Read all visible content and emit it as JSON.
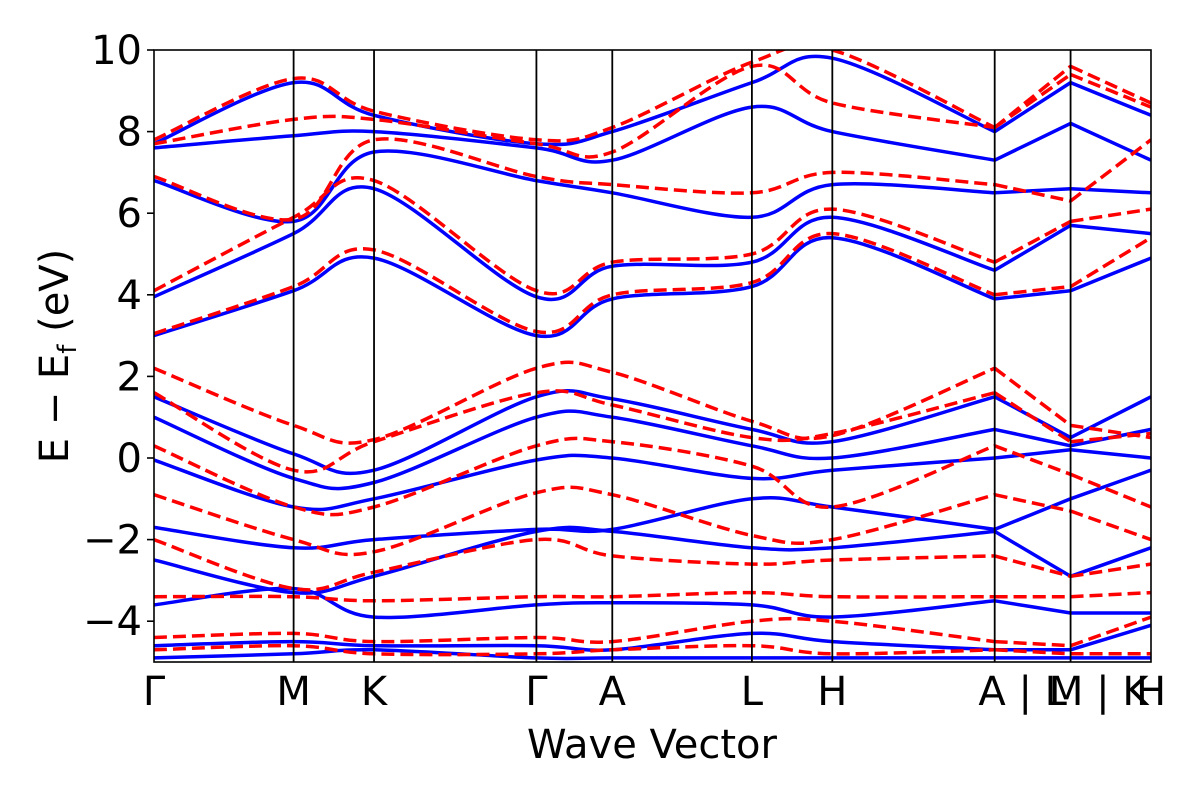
{
  "chart_data": {
    "type": "line",
    "title": "",
    "xlabel": "Wave Vector",
    "ylabel_main": "E − E",
    "ylabel_sub": "f",
    "ylabel_unit": " (eV)",
    "ylim": [
      -5,
      10
    ],
    "yticks": [
      -4,
      -2,
      0,
      2,
      4,
      6,
      8,
      10
    ],
    "ytick_labels": [
      "−4",
      "−2",
      "0",
      "2",
      "4",
      "6",
      "8",
      "10"
    ],
    "xlim": [
      0,
      6.57
    ],
    "kpoints": [
      {
        "x": 0.0,
        "label": "Γ"
      },
      {
        "x": 0.92,
        "label": "M"
      },
      {
        "x": 1.45,
        "label": "K"
      },
      {
        "x": 2.52,
        "label": "Γ"
      },
      {
        "x": 3.02,
        "label": "A"
      },
      {
        "x": 3.94,
        "label": "L"
      },
      {
        "x": 4.47,
        "label": "H"
      },
      {
        "x": 5.54,
        "label": "A | L"
      },
      {
        "x": 6.04,
        "label": "M | K"
      },
      {
        "x": 6.57,
        "label": "H"
      }
    ],
    "grid": false,
    "legend": "none",
    "colors": {
      "solid": "#0000ff",
      "dashed": "#ff0000",
      "kline": "#000000"
    },
    "series": [
      {
        "style": "solid",
        "x": [
          0,
          0.92,
          1.45,
          2.52,
          3.02,
          3.94,
          4.47,
          5.54,
          6.04,
          6.57
        ],
        "y": [
          -4.9,
          -4.8,
          -4.7,
          -4.9,
          -4.9,
          -4.9,
          -4.9,
          -4.9,
          -4.9,
          -4.9
        ]
      },
      {
        "style": "solid",
        "x": [
          0,
          0.92,
          1.45,
          2.52,
          3.02,
          3.94,
          4.47,
          5.54,
          6.04,
          6.57
        ],
        "y": [
          -4.6,
          -4.5,
          -4.6,
          -4.6,
          -4.7,
          -4.3,
          -4.5,
          -4.7,
          -4.7,
          -4.1
        ]
      },
      {
        "style": "solid",
        "x": [
          0,
          0.92,
          1.45,
          2.52,
          3.02,
          3.94,
          4.47,
          5.54,
          6.04,
          6.57
        ],
        "y": [
          -3.6,
          -3.2,
          -3.9,
          -3.6,
          -3.55,
          -3.6,
          -3.9,
          -3.5,
          -3.8,
          -3.8
        ]
      },
      {
        "style": "solid",
        "x": [
          0,
          0.92,
          1.45,
          2.52,
          3.02,
          3.94,
          4.47,
          5.54,
          6.04,
          6.57
        ],
        "y": [
          -2.5,
          -3.3,
          -2.9,
          -1.8,
          -1.8,
          -2.2,
          -2.2,
          -1.8,
          -2.9,
          -2.2
        ]
      },
      {
        "style": "solid",
        "x": [
          0,
          0.92,
          1.45,
          2.52,
          3.02,
          3.94,
          4.47,
          5.54,
          6.04,
          6.57
        ],
        "y": [
          -1.7,
          -2.2,
          -2.0,
          -1.75,
          -1.75,
          -1.0,
          -1.2,
          -1.75,
          -1.0,
          -0.3
        ]
      },
      {
        "style": "solid",
        "x": [
          0,
          0.92,
          1.45,
          2.52,
          3.02,
          3.94,
          4.47,
          5.54,
          6.04,
          6.57
        ],
        "y": [
          -0.05,
          -1.2,
          -1.0,
          -0.05,
          0.0,
          -0.5,
          -0.3,
          0.0,
          0.2,
          0.0
        ]
      },
      {
        "style": "solid",
        "x": [
          0,
          0.92,
          1.45,
          2.52,
          3.02,
          3.94,
          4.47,
          5.54,
          6.04,
          6.57
        ],
        "y": [
          1.0,
          -0.5,
          -0.6,
          1.0,
          1.0,
          0.3,
          0.0,
          0.7,
          0.3,
          0.7
        ]
      },
      {
        "style": "solid",
        "x": [
          0,
          0.92,
          1.45,
          2.52,
          3.02,
          3.94,
          4.47,
          5.54,
          6.04,
          6.57
        ],
        "y": [
          1.5,
          0.1,
          -0.3,
          1.5,
          1.45,
          0.7,
          0.4,
          1.5,
          0.5,
          1.5
        ]
      },
      {
        "style": "solid",
        "x": [
          0,
          0.92,
          1.45,
          2.52,
          3.02,
          3.94,
          4.47,
          5.54,
          6.04,
          6.57
        ],
        "y": [
          3.0,
          4.1,
          4.9,
          3.0,
          3.9,
          4.2,
          5.4,
          3.9,
          4.1,
          4.9
        ]
      },
      {
        "style": "solid",
        "x": [
          0,
          0.92,
          1.45,
          2.52,
          3.02,
          3.94,
          4.47,
          5.54,
          6.04,
          6.57
        ],
        "y": [
          3.95,
          5.5,
          6.6,
          3.95,
          4.7,
          4.8,
          5.9,
          4.6,
          5.7,
          5.5
        ]
      },
      {
        "style": "solid",
        "x": [
          0,
          0.92,
          1.45,
          2.52,
          3.02,
          3.94,
          4.47,
          5.54,
          6.04,
          6.57
        ],
        "y": [
          6.8,
          5.8,
          7.5,
          6.8,
          6.5,
          5.9,
          6.7,
          6.5,
          6.6,
          6.5
        ]
      },
      {
        "style": "solid",
        "x": [
          0,
          0.92,
          1.45,
          2.52,
          3.02,
          3.94,
          4.47,
          5.54,
          6.04,
          6.57
        ],
        "y": [
          7.6,
          7.9,
          8.0,
          7.6,
          7.3,
          8.6,
          8.0,
          7.3,
          8.2,
          7.3
        ]
      },
      {
        "style": "solid",
        "x": [
          0,
          0.92,
          1.45,
          2.52,
          3.02,
          3.94,
          4.47,
          5.54,
          6.04,
          6.57
        ],
        "y": [
          7.7,
          9.2,
          8.4,
          7.7,
          8.0,
          9.2,
          9.8,
          8.0,
          9.2,
          8.4
        ]
      },
      {
        "style": "dashed",
        "x": [
          0,
          0.92,
          1.45,
          2.52,
          3.02,
          3.94,
          4.47,
          5.54,
          6.04,
          6.57
        ],
        "y": [
          -4.7,
          -4.6,
          -4.8,
          -4.8,
          -4.7,
          -4.6,
          -4.8,
          -4.7,
          -4.8,
          -4.8
        ]
      },
      {
        "style": "dashed",
        "x": [
          0,
          0.92,
          1.45,
          2.52,
          3.02,
          3.94,
          4.47,
          5.54,
          6.04,
          6.57
        ],
        "y": [
          -4.4,
          -4.3,
          -4.5,
          -4.4,
          -4.5,
          -4.0,
          -4.0,
          -4.5,
          -4.6,
          -3.9
        ]
      },
      {
        "style": "dashed",
        "x": [
          0,
          0.92,
          1.45,
          2.52,
          3.02,
          3.94,
          4.47,
          5.54,
          6.04,
          6.57
        ],
        "y": [
          -3.4,
          -3.4,
          -3.5,
          -3.4,
          -3.4,
          -3.3,
          -3.4,
          -3.4,
          -3.4,
          -3.3
        ]
      },
      {
        "style": "dashed",
        "x": [
          0,
          0.92,
          1.45,
          2.52,
          3.02,
          3.94,
          4.47,
          5.54,
          6.04,
          6.57
        ],
        "y": [
          -2.0,
          -3.2,
          -2.8,
          -2.0,
          -2.4,
          -2.6,
          -2.5,
          -2.4,
          -2.9,
          -2.6
        ]
      },
      {
        "style": "dashed",
        "x": [
          0,
          0.92,
          1.45,
          2.52,
          3.02,
          3.94,
          4.47,
          5.54,
          6.04,
          6.57
        ],
        "y": [
          -0.9,
          -2.0,
          -2.3,
          -0.85,
          -0.9,
          -1.9,
          -2.0,
          -0.9,
          -1.3,
          -2.0
        ]
      },
      {
        "style": "dashed",
        "x": [
          0,
          0.92,
          1.45,
          2.52,
          3.02,
          3.94,
          4.47,
          5.54,
          6.04,
          6.57
        ],
        "y": [
          0.3,
          -1.2,
          -1.2,
          0.3,
          0.4,
          -0.2,
          -1.2,
          0.3,
          -0.4,
          -1.2
        ]
      },
      {
        "style": "dashed",
        "x": [
          0,
          0.92,
          1.45,
          2.52,
          3.02,
          3.94,
          4.47,
          5.54,
          6.04,
          6.57
        ],
        "y": [
          1.6,
          -0.3,
          0.4,
          1.6,
          1.3,
          0.5,
          0.6,
          1.6,
          0.4,
          0.6
        ]
      },
      {
        "style": "dashed",
        "x": [
          0,
          0.92,
          1.45,
          2.52,
          3.02,
          3.94,
          4.47,
          5.54,
          6.04,
          6.57
        ],
        "y": [
          2.2,
          0.8,
          0.45,
          2.2,
          2.1,
          0.9,
          0.55,
          2.2,
          0.8,
          0.5
        ]
      },
      {
        "style": "dashed",
        "x": [
          0,
          0.92,
          1.45,
          2.52,
          3.02,
          3.94,
          4.47,
          5.54,
          6.04,
          6.57
        ],
        "y": [
          3.05,
          4.2,
          5.1,
          3.1,
          4.0,
          4.3,
          5.5,
          4.0,
          4.2,
          5.4
        ]
      },
      {
        "style": "dashed",
        "x": [
          0,
          0.92,
          1.45,
          2.52,
          3.02,
          3.94,
          4.47,
          5.54,
          6.04,
          6.57
        ],
        "y": [
          4.1,
          5.9,
          6.8,
          4.1,
          4.8,
          5.0,
          6.1,
          4.8,
          5.8,
          6.1
        ]
      },
      {
        "style": "dashed",
        "x": [
          0,
          0.92,
          1.45,
          2.52,
          3.02,
          3.94,
          4.47,
          5.54,
          6.04,
          6.57
        ],
        "y": [
          6.9,
          5.85,
          7.8,
          6.9,
          6.7,
          6.5,
          7.0,
          6.7,
          6.3,
          7.8
        ]
      },
      {
        "style": "dashed",
        "x": [
          0,
          0.92,
          1.45,
          2.52,
          3.02,
          3.94,
          4.47,
          5.54,
          6.04,
          6.57
        ],
        "y": [
          7.7,
          8.3,
          8.3,
          7.7,
          7.5,
          9.6,
          8.7,
          8.1,
          9.4,
          8.6
        ]
      },
      {
        "style": "dashed",
        "x": [
          0,
          0.92,
          1.45,
          2.52,
          3.02,
          3.94,
          4.47,
          5.54,
          6.04,
          6.57
        ],
        "y": [
          7.8,
          9.3,
          8.5,
          7.8,
          8.1,
          9.7,
          10.0,
          8.1,
          9.6,
          8.7
        ]
      }
    ]
  }
}
